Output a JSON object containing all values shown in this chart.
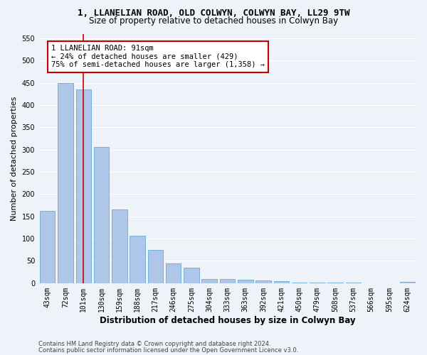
{
  "title1": "1, LLANELIAN ROAD, OLD COLWYN, COLWYN BAY, LL29 9TW",
  "title2": "Size of property relative to detached houses in Colwyn Bay",
  "xlabel": "Distribution of detached houses by size in Colwyn Bay",
  "ylabel": "Number of detached properties",
  "categories": [
    "43sqm",
    "72sqm",
    "101sqm",
    "130sqm",
    "159sqm",
    "188sqm",
    "217sqm",
    "246sqm",
    "275sqm",
    "304sqm",
    "333sqm",
    "363sqm",
    "392sqm",
    "421sqm",
    "450sqm",
    "479sqm",
    "508sqm",
    "537sqm",
    "566sqm",
    "595sqm",
    "624sqm"
  ],
  "values": [
    163,
    450,
    435,
    305,
    165,
    107,
    75,
    44,
    35,
    10,
    10,
    8,
    6,
    4,
    2,
    1,
    1,
    1,
    0,
    0,
    3
  ],
  "bar_color": "#aec6e8",
  "bar_edge_color": "#5a9fd4",
  "vline_x_index": 2,
  "annotation_line1": "1 LLANELIAN ROAD: 91sqm",
  "annotation_line2": "← 24% of detached houses are smaller (429)",
  "annotation_line3": "75% of semi-detached houses are larger (1,358) →",
  "annotation_box_color": "#ffffff",
  "annotation_box_edge_color": "#cc0000",
  "vline_color": "#cc0000",
  "ylim": [
    0,
    560
  ],
  "yticks": [
    0,
    50,
    100,
    150,
    200,
    250,
    300,
    350,
    400,
    450,
    500,
    550
  ],
  "footer1": "Contains HM Land Registry data © Crown copyright and database right 2024.",
  "footer2": "Contains public sector information licensed under the Open Government Licence v3.0.",
  "bg_color": "#eef2f9",
  "grid_color": "#ffffff",
  "title_fontsize": 9,
  "subtitle_fontsize": 8.5,
  "axis_label_fontsize": 8,
  "tick_fontsize": 7,
  "annotation_fontsize": 7.5,
  "footer_fontsize": 6
}
